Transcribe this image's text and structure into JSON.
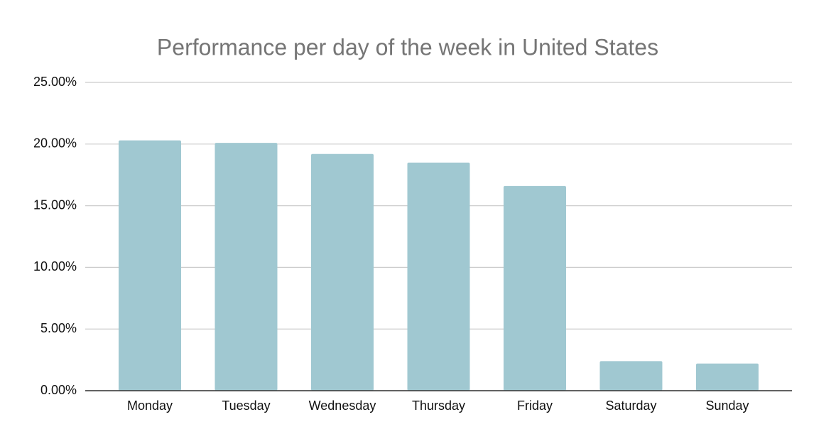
{
  "chart_data": {
    "type": "bar",
    "title": "Performance per day of the week in United States",
    "categories": [
      "Monday",
      "Tuesday",
      "Wednesday",
      "Thursday",
      "Friday",
      "Saturday",
      "Sunday"
    ],
    "values": [
      20.3,
      20.1,
      19.2,
      18.5,
      16.6,
      2.4,
      2.2
    ],
    "color": "#a0c8d1",
    "ylim": [
      0,
      25
    ],
    "yticks": [
      {
        "value": 0,
        "label": "0.00%"
      },
      {
        "value": 5,
        "label": "5.00%"
      },
      {
        "value": 10,
        "label": "10.00%"
      },
      {
        "value": 15,
        "label": "15.00%"
      },
      {
        "value": 20,
        "label": "20.00%"
      },
      {
        "value": 25,
        "label": "25.00%"
      }
    ],
    "grid": true
  }
}
